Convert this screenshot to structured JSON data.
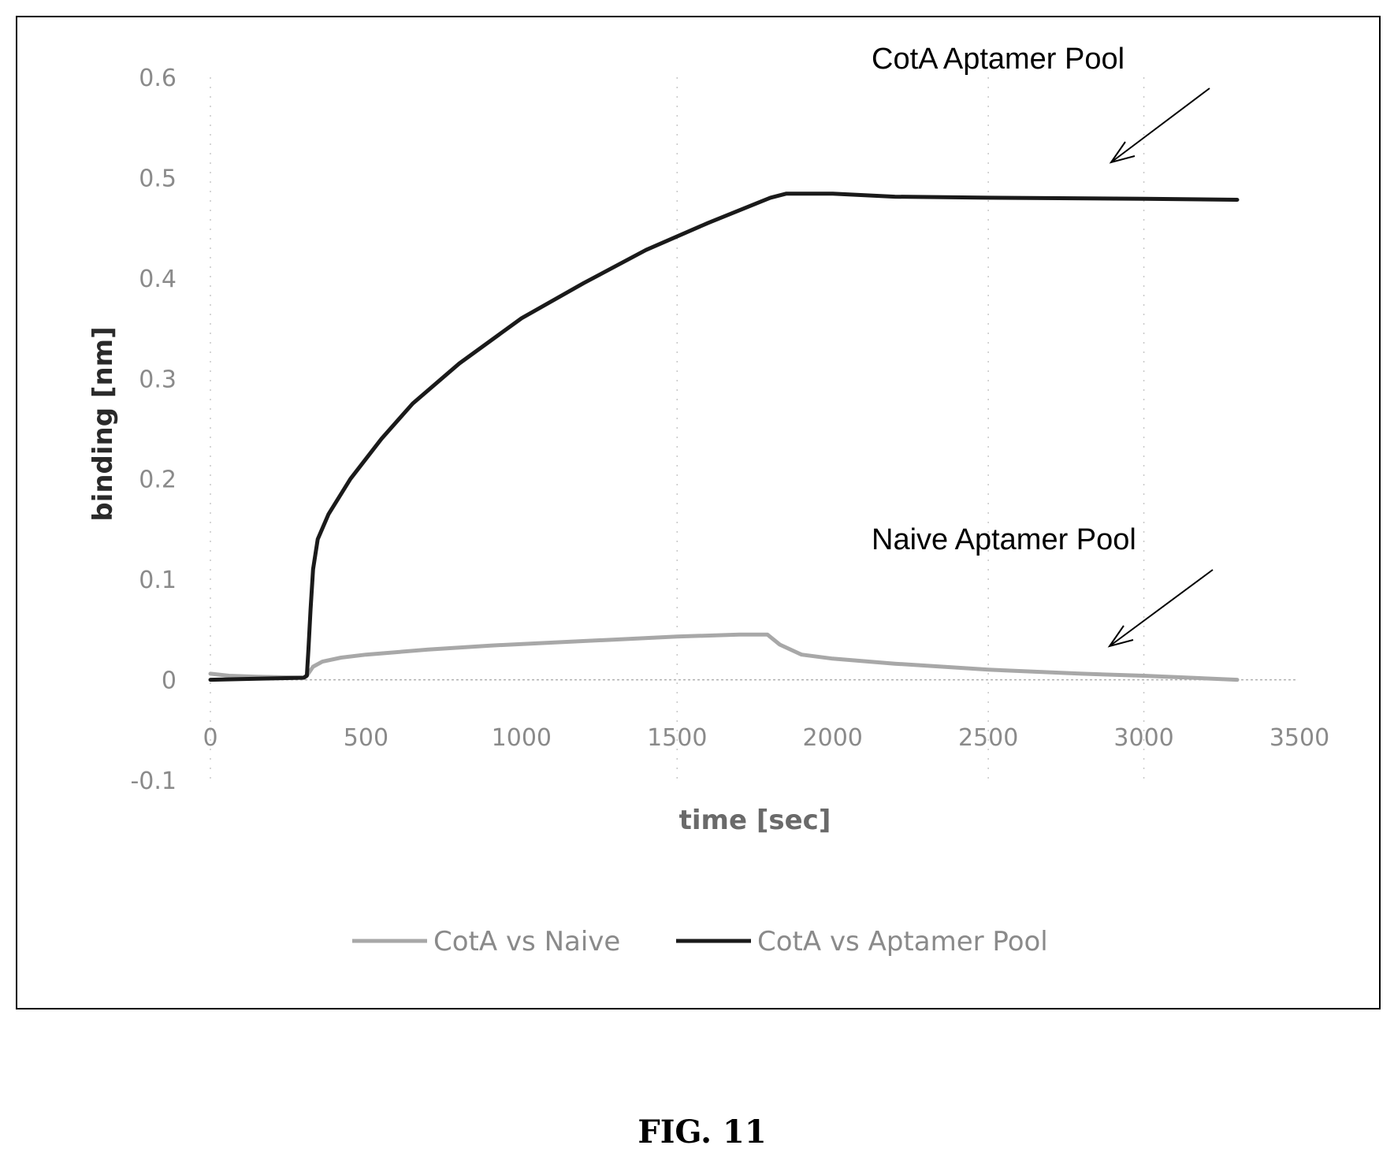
{
  "chart_data": {
    "type": "line",
    "title": "",
    "xlabel": "time [sec]",
    "ylabel": "binding [nm]",
    "xlim": [
      0,
      3500
    ],
    "ylim": [
      -0.1,
      0.6
    ],
    "x_ticks": [
      0,
      500,
      1000,
      1500,
      2000,
      2500,
      3000,
      3500
    ],
    "y_ticks": [
      -0.1,
      0,
      0.1,
      0.2,
      0.3,
      0.4,
      0.5,
      0.6
    ],
    "grid": "sparse dotted vertical lines",
    "legend_position": "bottom",
    "series": [
      {
        "name": "CotA vs Naive",
        "color": "#a8a8a8",
        "points": [
          [
            0,
            0.006
          ],
          [
            60,
            0.004
          ],
          [
            150,
            0.003
          ],
          [
            300,
            0.002
          ],
          [
            312,
            0.005
          ],
          [
            330,
            0.013
          ],
          [
            360,
            0.018
          ],
          [
            420,
            0.022
          ],
          [
            500,
            0.025
          ],
          [
            700,
            0.03
          ],
          [
            900,
            0.034
          ],
          [
            1100,
            0.037
          ],
          [
            1300,
            0.04
          ],
          [
            1500,
            0.043
          ],
          [
            1700,
            0.045
          ],
          [
            1790,
            0.045
          ],
          [
            1830,
            0.035
          ],
          [
            1900,
            0.025
          ],
          [
            2000,
            0.021
          ],
          [
            2200,
            0.016
          ],
          [
            2500,
            0.01
          ],
          [
            2800,
            0.006
          ],
          [
            3000,
            0.004
          ],
          [
            3300,
            0.0
          ]
        ]
      },
      {
        "name": "CotA vs Aptamer Pool",
        "color": "#1a1a1a",
        "points": [
          [
            0,
            0.0
          ],
          [
            150,
            0.001
          ],
          [
            300,
            0.002
          ],
          [
            310,
            0.004
          ],
          [
            315,
            0.03
          ],
          [
            322,
            0.07
          ],
          [
            330,
            0.11
          ],
          [
            345,
            0.14
          ],
          [
            380,
            0.165
          ],
          [
            450,
            0.2
          ],
          [
            550,
            0.24
          ],
          [
            650,
            0.275
          ],
          [
            800,
            0.315
          ],
          [
            1000,
            0.36
          ],
          [
            1200,
            0.395
          ],
          [
            1400,
            0.428
          ],
          [
            1600,
            0.455
          ],
          [
            1800,
            0.48
          ],
          [
            1850,
            0.484
          ],
          [
            2000,
            0.484
          ],
          [
            2200,
            0.481
          ],
          [
            2500,
            0.48
          ],
          [
            3000,
            0.479
          ],
          [
            3300,
            0.478
          ]
        ]
      }
    ],
    "annotations": [
      {
        "text": "CotA Aptamer Pool",
        "target_series": "CotA vs Aptamer Pool"
      },
      {
        "text": "Naive Aptamer Pool",
        "target_series": "CotA vs Naive"
      }
    ]
  },
  "caption": "FIG. 11"
}
